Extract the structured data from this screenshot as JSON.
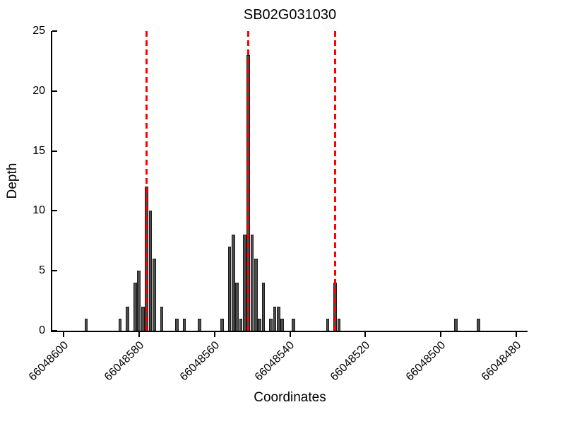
{
  "chart_data": {
    "type": "bar",
    "title": "SB02G031030",
    "xlabel": "Coordinates",
    "ylabel": "Depth",
    "x_axis": {
      "min": 66048477,
      "max": 66048603,
      "reversed": true,
      "ticks": [
        66048600,
        66048580,
        66048560,
        66048540,
        66048520,
        66048500,
        66048480
      ],
      "tick_labels": [
        "66048600",
        "66048580",
        "66048560",
        "66048540",
        "66048520",
        "66048500",
        "66048480"
      ],
      "tick_rotation_deg": 45
    },
    "y_axis": {
      "min": 0,
      "max": 25,
      "ticks": [
        0,
        5,
        10,
        15,
        20,
        25
      ],
      "tick_labels": [
        "0",
        "5",
        "10",
        "15",
        "20",
        "25"
      ]
    },
    "bars": [
      {
        "coord": 66048594,
        "depth": 1
      },
      {
        "coord": 66048585,
        "depth": 1
      },
      {
        "coord": 66048583,
        "depth": 2
      },
      {
        "coord": 66048581,
        "depth": 4
      },
      {
        "coord": 66048580,
        "depth": 5
      },
      {
        "coord": 66048579,
        "depth": 2
      },
      {
        "coord": 66048578,
        "depth": 12
      },
      {
        "coord": 66048577,
        "depth": 10
      },
      {
        "coord": 66048576,
        "depth": 6
      },
      {
        "coord": 66048574,
        "depth": 2
      },
      {
        "coord": 66048570,
        "depth": 1
      },
      {
        "coord": 66048568,
        "depth": 1
      },
      {
        "coord": 66048564,
        "depth": 1
      },
      {
        "coord": 66048558,
        "depth": 1
      },
      {
        "coord": 66048556,
        "depth": 7
      },
      {
        "coord": 66048555,
        "depth": 8
      },
      {
        "coord": 66048554,
        "depth": 4
      },
      {
        "coord": 66048553,
        "depth": 1
      },
      {
        "coord": 66048552,
        "depth": 8
      },
      {
        "coord": 66048551,
        "depth": 23
      },
      {
        "coord": 66048550,
        "depth": 8
      },
      {
        "coord": 66048549,
        "depth": 6
      },
      {
        "coord": 66048548,
        "depth": 1
      },
      {
        "coord": 66048547,
        "depth": 4
      },
      {
        "coord": 66048545,
        "depth": 1
      },
      {
        "coord": 66048544,
        "depth": 2
      },
      {
        "coord": 66048543,
        "depth": 2
      },
      {
        "coord": 66048542,
        "depth": 1
      },
      {
        "coord": 66048539,
        "depth": 1
      },
      {
        "coord": 66048530,
        "depth": 1
      },
      {
        "coord": 66048528,
        "depth": 4
      },
      {
        "coord": 66048527,
        "depth": 1
      },
      {
        "coord": 66048496,
        "depth": 1
      },
      {
        "coord": 66048490,
        "depth": 1
      }
    ],
    "marker_lines": {
      "positions": [
        66048578,
        66048551,
        66048528
      ],
      "color": "#ff0000",
      "style": "dashed"
    },
    "bar_color": "#4d4d4d",
    "bar_edge_color": "#1a1a1a",
    "axis_color": "#000000",
    "background_color": "#ffffff",
    "legend": null,
    "grid": false
  }
}
